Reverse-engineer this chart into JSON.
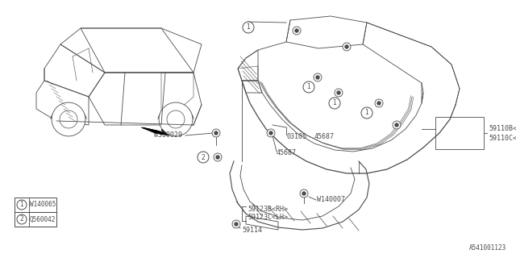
{
  "bg_color": "#ffffff",
  "line_color": "#4a4a4a",
  "text_color": "#4a4a4a",
  "diagram_id": "A541001123",
  "legend": [
    {
      "num": "1",
      "code": "W140065"
    },
    {
      "num": "2",
      "code": "Q560042"
    }
  ],
  "figsize": [
    6.4,
    3.2
  ],
  "dpi": 100
}
